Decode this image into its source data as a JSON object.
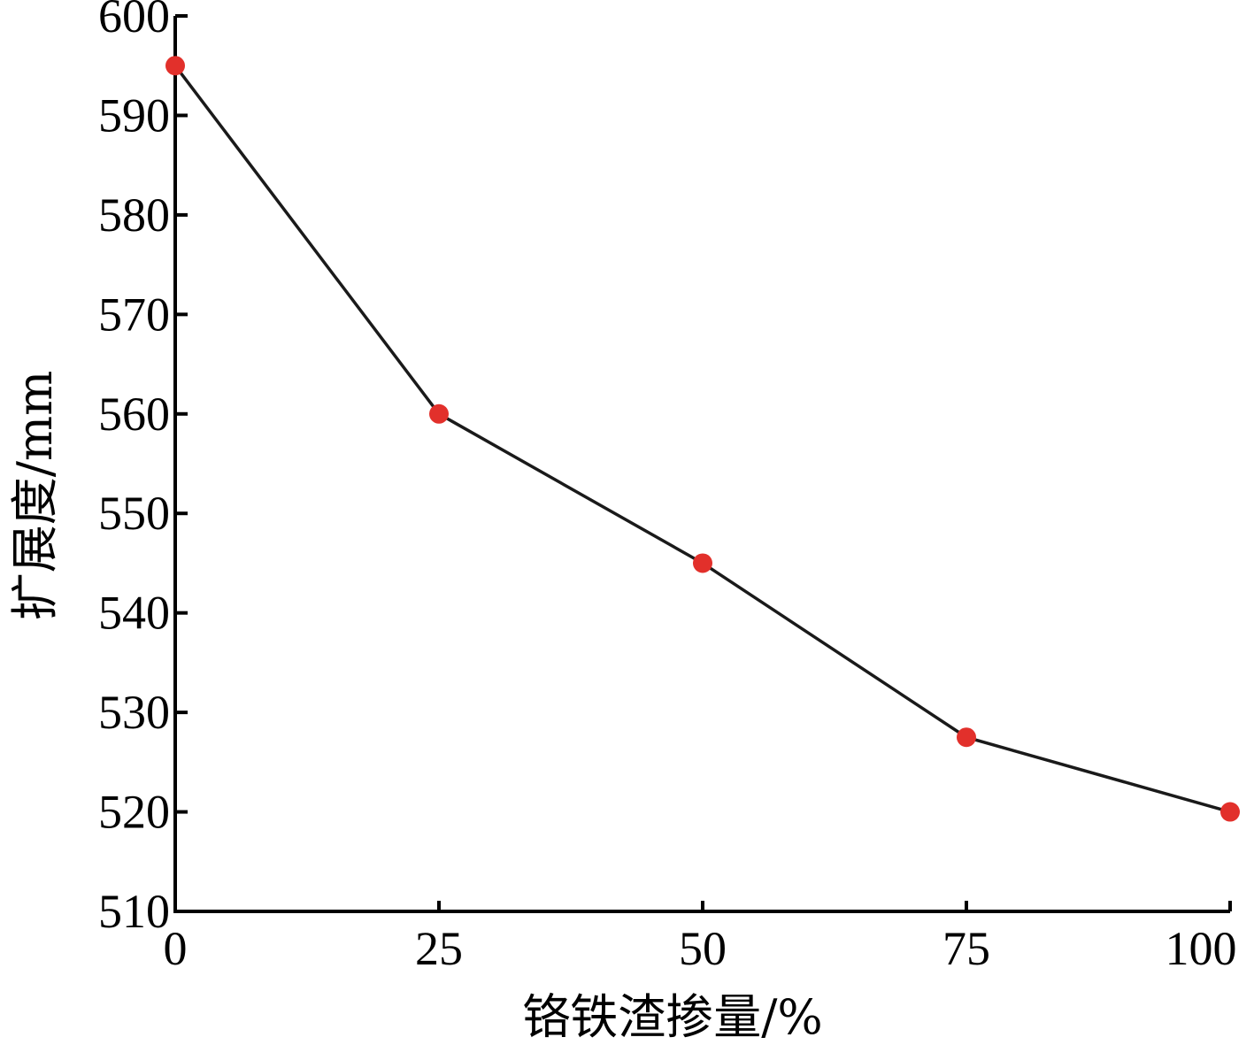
{
  "chart_data": {
    "type": "line",
    "title": "",
    "xlabel": "铬铁渣掺量/%",
    "ylabel": "扩展度/mm",
    "x": [
      0,
      25,
      50,
      75,
      100
    ],
    "series": [
      {
        "values": [
          595,
          560,
          545,
          527.5,
          520
        ]
      }
    ],
    "xticks": [
      "0",
      "25",
      "50",
      "75",
      "100"
    ],
    "yticks": [
      "510",
      "520",
      "530",
      "540",
      "550",
      "560",
      "570",
      "580",
      "590",
      "600"
    ],
    "xlim": [
      0,
      100
    ],
    "ylim": [
      510,
      600
    ],
    "grid": false,
    "legend": "none",
    "line_color": "#1a1a1a",
    "marker_color": "#e2302b"
  }
}
